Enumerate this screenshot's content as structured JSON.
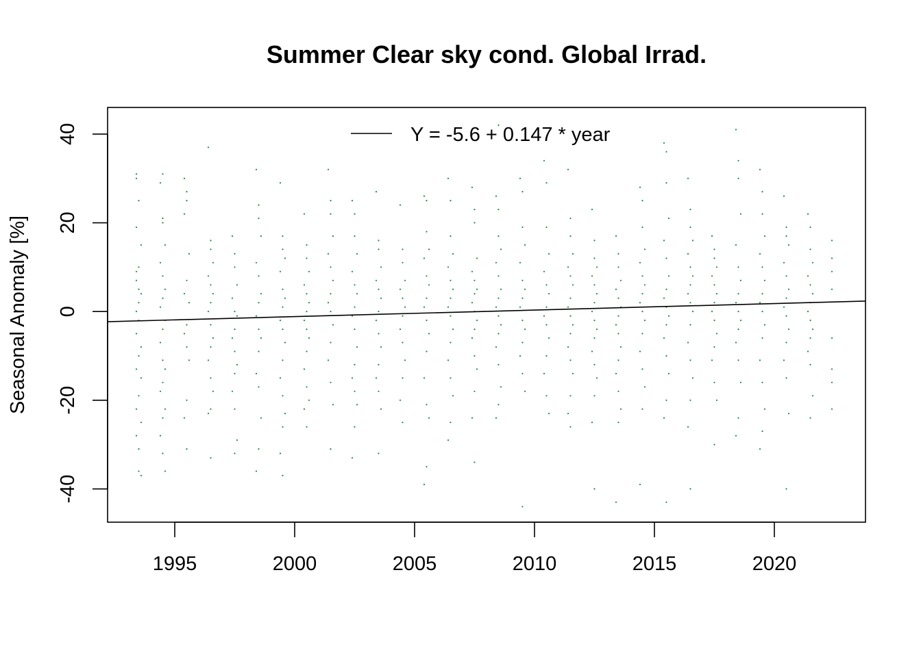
{
  "chart_data": {
    "type": "scatter",
    "title": "Summer Clear sky cond. Global Irrad.",
    "xlabel": "",
    "ylabel": "Seasonal Anomaly [%]",
    "xlim": [
      1992.2,
      2023.8
    ],
    "ylim": [
      -47.5,
      46.0
    ],
    "x_ticks": [
      1995,
      2000,
      2005,
      2010,
      2015,
      2020
    ],
    "y_ticks": [
      -40,
      -20,
      0,
      20,
      40
    ],
    "grid": false,
    "legend": {
      "position": "top",
      "entries": [
        "Y = -5.6 + 0.147 * year"
      ]
    },
    "point_color": "#1a8a3c",
    "line_color": "#000000",
    "series": [
      {
        "kind": "points",
        "x": [
          1993.4,
          1993.4,
          1993.5,
          1993.4,
          1993.6,
          1993.5,
          1993.4,
          1993.4,
          1993.5,
          1993.6,
          1993.5,
          1993.4,
          1993.5,
          1993.4,
          1993.6,
          1993.5,
          1993.4,
          1993.6,
          1993.5,
          1993.4,
          1993.6,
          1993.4,
          1993.5,
          1993.5,
          1993.6,
          1994.4,
          1994.5,
          1994.5,
          1994.6,
          1994.4,
          1994.5,
          1994.6,
          1994.5,
          1994.4,
          1994.6,
          1994.5,
          1994.4,
          1994.5,
          1994.6,
          1994.5,
          1994.4,
          1994.6,
          1994.5,
          1994.4,
          1994.5,
          1994.6,
          1994.5,
          1995.4,
          1995.5,
          1995.5,
          1995.4,
          1995.6,
          1995.5,
          1995.4,
          1995.6,
          1995.5,
          1995.4,
          1995.5,
          1995.6,
          1995.5,
          1995.4,
          1995.5,
          1996.4,
          1996.5,
          1996.5,
          1996.6,
          1996.4,
          1996.5,
          1996.6,
          1996.5,
          1996.4,
          1996.5,
          1996.6,
          1996.5,
          1996.4,
          1996.5,
          1996.6,
          1996.5,
          1996.4,
          1996.5,
          1997.4,
          1997.5,
          1997.5,
          1997.6,
          1997.4,
          1997.5,
          1997.6,
          1997.5,
          1997.4,
          1997.5,
          1997.6,
          1997.5,
          1997.4,
          1997.5,
          1997.6,
          1997.5,
          1998.4,
          1998.5,
          1998.5,
          1998.6,
          1998.4,
          1998.5,
          1998.6,
          1998.5,
          1998.4,
          1998.5,
          1998.6,
          1998.5,
          1998.4,
          1998.5,
          1998.6,
          1998.5,
          1998.4,
          1999.4,
          1999.5,
          1999.5,
          1999.6,
          1999.4,
          1999.5,
          1999.6,
          1999.5,
          1999.4,
          1999.5,
          1999.6,
          1999.5,
          1999.4,
          1999.5,
          1999.6,
          1999.5,
          1999.4,
          1999.5,
          2000.4,
          2000.5,
          2000.5,
          2000.6,
          2000.4,
          2000.5,
          2000.6,
          2000.5,
          2000.4,
          2000.5,
          2000.6,
          2000.5,
          2000.4,
          2000.5,
          2000.6,
          2000.5,
          2000.4,
          2001.4,
          2001.5,
          2001.5,
          2001.6,
          2001.4,
          2001.5,
          2001.6,
          2001.5,
          2001.4,
          2001.5,
          2001.6,
          2001.5,
          2001.4,
          2001.5,
          2001.6,
          2001.5,
          2002.4,
          2002.5,
          2002.5,
          2002.6,
          2002.4,
          2002.5,
          2002.6,
          2002.5,
          2002.4,
          2002.5,
          2002.6,
          2002.5,
          2002.4,
          2002.5,
          2002.6,
          2002.5,
          2002.4,
          2003.4,
          2003.5,
          2003.5,
          2003.6,
          2003.4,
          2003.5,
          2003.6,
          2003.5,
          2003.4,
          2003.5,
          2003.6,
          2003.5,
          2003.4,
          2003.5,
          2003.6,
          2003.5,
          2004.4,
          2004.5,
          2004.5,
          2004.6,
          2004.4,
          2004.5,
          2004.6,
          2004.5,
          2004.4,
          2004.5,
          2004.6,
          2004.5,
          2004.4,
          2004.5,
          2005.4,
          2005.5,
          2005.5,
          2005.6,
          2005.4,
          2005.5,
          2005.6,
          2005.5,
          2005.4,
          2005.5,
          2005.6,
          2005.5,
          2005.4,
          2005.5,
          2005.6,
          2005.5,
          2005.4,
          2006.4,
          2006.5,
          2006.5,
          2006.6,
          2006.4,
          2006.5,
          2006.6,
          2006.5,
          2006.4,
          2006.5,
          2006.6,
          2006.5,
          2006.4,
          2006.5,
          2006.6,
          2006.5,
          2006.4,
          2007.4,
          2007.5,
          2007.5,
          2007.6,
          2007.4,
          2007.5,
          2007.6,
          2007.5,
          2007.4,
          2007.5,
          2007.6,
          2007.5,
          2007.4,
          2007.5,
          2007.6,
          2007.5,
          2007.4,
          2007.5,
          2008.4,
          2008.5,
          2008.5,
          2008.6,
          2008.4,
          2008.5,
          2008.6,
          2008.5,
          2008.4,
          2008.5,
          2008.6,
          2008.5,
          2008.4,
          2008.5,
          2008.6,
          2008.5,
          2008.4,
          2008.5,
          2009.4,
          2009.5,
          2009.5,
          2009.6,
          2009.4,
          2009.5,
          2009.6,
          2009.5,
          2009.4,
          2009.5,
          2009.6,
          2009.5,
          2009.4,
          2009.5,
          2009.6,
          2009.5,
          2010.4,
          2010.5,
          2010.5,
          2010.6,
          2010.4,
          2010.5,
          2010.6,
          2010.5,
          2010.4,
          2010.5,
          2010.6,
          2010.5,
          2010.4,
          2010.5,
          2010.6,
          2011.4,
          2011.5,
          2011.5,
          2011.6,
          2011.4,
          2011.5,
          2011.6,
          2011.5,
          2011.4,
          2011.5,
          2011.6,
          2011.5,
          2011.4,
          2011.5,
          2011.6,
          2011.5,
          2011.4,
          2011.5,
          2012.4,
          2012.5,
          2012.5,
          2012.6,
          2012.4,
          2012.5,
          2012.6,
          2012.5,
          2012.4,
          2012.5,
          2012.6,
          2012.5,
          2012.4,
          2012.5,
          2012.6,
          2012.5,
          2012.4,
          2012.5,
          2013.4,
          2013.5,
          2013.5,
          2013.6,
          2013.4,
          2013.5,
          2013.6,
          2013.5,
          2013.4,
          2013.5,
          2013.6,
          2013.5,
          2013.4,
          2013.5,
          2013.6,
          2013.5,
          2013.4,
          2014.4,
          2014.5,
          2014.5,
          2014.6,
          2014.4,
          2014.5,
          2014.6,
          2014.5,
          2014.4,
          2014.5,
          2014.6,
          2014.5,
          2014.4,
          2014.5,
          2014.6,
          2014.5,
          2014.4,
          2015.4,
          2015.5,
          2015.5,
          2015.6,
          2015.4,
          2015.5,
          2015.6,
          2015.5,
          2015.4,
          2015.5,
          2015.6,
          2015.5,
          2015.4,
          2015.5,
          2015.6,
          2015.5,
          2015.4,
          2015.5,
          2016.4,
          2016.5,
          2016.5,
          2016.6,
          2016.4,
          2016.5,
          2016.6,
          2016.5,
          2016.4,
          2016.5,
          2016.6,
          2016.5,
          2016.4,
          2016.5,
          2016.6,
          2016.5,
          2016.4,
          2016.5,
          2017.4,
          2017.5,
          2017.5,
          2017.6,
          2017.4,
          2017.5,
          2017.6,
          2017.5,
          2017.4,
          2017.5,
          2017.6,
          2017.5,
          2017.4,
          2017.5,
          2017.6,
          2017.5,
          2018.4,
          2018.5,
          2018.5,
          2018.6,
          2018.4,
          2018.5,
          2018.6,
          2018.5,
          2018.4,
          2018.5,
          2018.6,
          2018.5,
          2018.4,
          2018.5,
          2018.6,
          2018.5,
          2018.4,
          2019.4,
          2019.5,
          2019.5,
          2019.6,
          2019.4,
          2019.5,
          2019.6,
          2019.5,
          2019.4,
          2019.5,
          2019.6,
          2019.5,
          2019.4,
          2019.5,
          2019.6,
          2019.5,
          2019.4,
          2020.4,
          2020.5,
          2020.5,
          2020.6,
          2020.4,
          2020.5,
          2020.6,
          2020.5,
          2020.4,
          2020.5,
          2020.6,
          2020.5,
          2020.4,
          2020.5,
          2020.6,
          2020.5,
          2021.4,
          2021.5,
          2021.5,
          2021.6,
          2021.4,
          2021.5,
          2021.6,
          2021.5,
          2021.4,
          2021.5,
          2021.6,
          2021.5,
          2021.4,
          2021.5,
          2021.6,
          2021.5,
          2022.4,
          2022.4,
          2022.4,
          2022.4,
          2022.4,
          2022.4,
          2022.4,
          2022.4
        ],
        "y": [
          31,
          30,
          25,
          19,
          15,
          10,
          9,
          7,
          5,
          4,
          2,
          0,
          -2,
          -5,
          -8,
          -10,
          -13,
          -15,
          -19,
          -22,
          -25,
          -28,
          -31,
          -36,
          -37,
          29,
          21,
          20,
          15,
          11,
          8,
          5,
          3,
          1,
          -2,
          -4,
          -7,
          -11,
          -13,
          -16,
          -18,
          -22,
          -24,
          -28,
          -32,
          -36,
          31,
          30,
          27,
          25,
          22,
          13,
          7,
          4,
          2,
          -3,
          -5,
          -8,
          -11,
          -20,
          -24,
          -31,
          37,
          16,
          14,
          11,
          8,
          6,
          4,
          2,
          0,
          -3,
          -6,
          -8,
          -11,
          -15,
          -18,
          -22,
          -23,
          -33,
          17,
          13,
          10,
          6,
          3,
          0,
          -1,
          -4,
          -6,
          -9,
          -12,
          -14,
          -18,
          -22,
          -29,
          -32,
          32,
          24,
          21,
          17,
          11,
          8,
          4,
          2,
          -1,
          -4,
          -6,
          -9,
          -14,
          -17,
          -24,
          -31,
          -36,
          29,
          17,
          14,
          12,
          9,
          5,
          3,
          1,
          -2,
          -4,
          -7,
          -11,
          -15,
          -19,
          -23,
          -26,
          -32,
          -37,
          22,
          15,
          12,
          9,
          6,
          4,
          2,
          0,
          -2,
          -4,
          -6,
          -9,
          -13,
          -17,
          -20,
          -26,
          -22,
          32,
          25,
          22,
          17,
          13,
          10,
          7,
          4,
          2,
          0,
          -3,
          -7,
          -11,
          -16,
          -21,
          -31,
          25,
          22,
          17,
          13,
          9,
          6,
          4,
          1,
          -1,
          -4,
          -8,
          -12,
          -15,
          -18,
          -21,
          -26,
          -33,
          27,
          16,
          14,
          10,
          7,
          5,
          3,
          0,
          -2,
          -5,
          -8,
          -12,
          -15,
          -18,
          -22,
          -32,
          24,
          14,
          11,
          7,
          5,
          3,
          1,
          -1,
          -4,
          -7,
          -11,
          -15,
          -20,
          -25,
          26,
          25,
          18,
          14,
          12,
          8,
          6,
          3,
          1,
          -2,
          -5,
          -9,
          -15,
          -21,
          -24,
          -35,
          -39,
          30,
          25,
          17,
          13,
          10,
          7,
          5,
          3,
          1,
          -1,
          -4,
          -7,
          -11,
          -15,
          -19,
          -25,
          -29,
          28,
          23,
          20,
          12,
          9,
          7,
          5,
          4,
          2,
          0,
          -2,
          -4,
          -6,
          -10,
          -13,
          -18,
          -24,
          -34,
          26,
          23,
          17,
          14,
          11,
          8,
          5,
          3,
          1,
          -1,
          -3,
          -5,
          -8,
          -12,
          -17,
          -21,
          -24,
          42,
          30,
          27,
          19,
          15,
          11,
          7,
          5,
          3,
          1,
          -2,
          -4,
          -7,
          -10,
          -14,
          -18,
          -44,
          34,
          29,
          19,
          13,
          9,
          6,
          4,
          1,
          -1,
          -3,
          -6,
          -10,
          -14,
          -19,
          -23,
          32,
          21,
          17,
          13,
          10,
          8,
          6,
          3,
          1,
          -1,
          -3,
          -5,
          -8,
          -11,
          -14,
          -19,
          -23,
          -26,
          23,
          16,
          12,
          10,
          8,
          6,
          4,
          2,
          0,
          -2,
          -4,
          -6,
          -9,
          -12,
          -15,
          -19,
          -25,
          -40,
          17,
          13,
          10,
          7,
          5,
          3,
          1,
          -1,
          -3,
          -5,
          -8,
          -11,
          -14,
          -18,
          -22,
          -25,
          -43,
          28,
          25,
          19,
          14,
          11,
          8,
          6,
          4,
          2,
          0,
          -2,
          -5,
          -9,
          -13,
          -17,
          -22,
          -39,
          38,
          36,
          29,
          21,
          16,
          12,
          8,
          5,
          3,
          1,
          -1,
          -3,
          -6,
          -10,
          -14,
          -20,
          -24,
          -43,
          30,
          23,
          19,
          16,
          13,
          10,
          8,
          6,
          4,
          2,
          0,
          -3,
          -7,
          -11,
          -15,
          -20,
          -26,
          -40,
          17,
          14,
          12,
          10,
          8,
          6,
          4,
          2,
          0,
          -2,
          -5,
          -8,
          -11,
          -16,
          -20,
          -30,
          41,
          34,
          30,
          22,
          15,
          10,
          7,
          4,
          2,
          0,
          -2,
          -4,
          -7,
          -11,
          -16,
          -24,
          -28,
          32,
          27,
          22,
          17,
          13,
          10,
          7,
          4,
          2,
          0,
          -3,
          -6,
          -11,
          -16,
          -22,
          -27,
          -31,
          26,
          19,
          17,
          15,
          11,
          8,
          5,
          3,
          1,
          -1,
          -4,
          -7,
          -11,
          -15,
          -23,
          -40,
          22,
          19,
          14,
          11,
          8,
          6,
          4,
          2,
          0,
          -2,
          -4,
          -6,
          -9,
          -12,
          -19,
          -24,
          16,
          12,
          9,
          5,
          -6,
          -13,
          -16,
          -22
        ]
      },
      {
        "kind": "fit_line",
        "name": "Y = -5.6 + 0.147 * year",
        "x": [
          1992.2,
          2023.8
        ],
        "y": [
          -2.3,
          2.35
        ]
      }
    ]
  }
}
